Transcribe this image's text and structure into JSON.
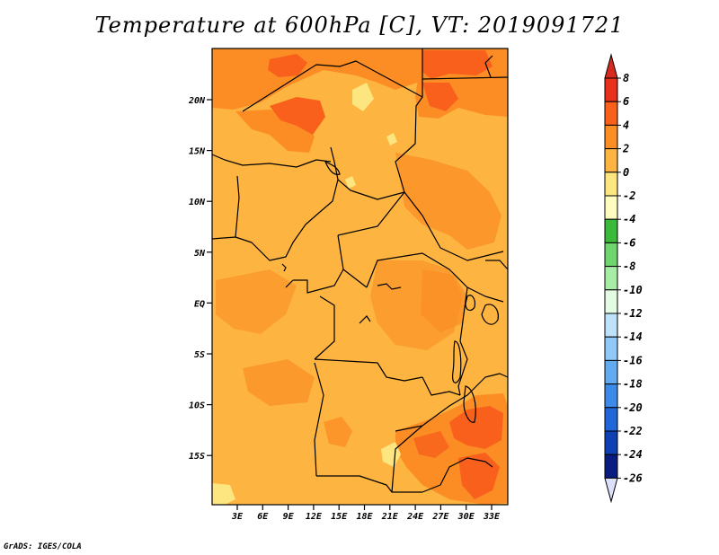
{
  "title": "Temperature at 600hPa [C], VT: 2019091721",
  "credit": "GrADS: IGES/COLA",
  "map": {
    "lat_labels": [
      "20N",
      "15N",
      "10N",
      "5N",
      "EQ",
      "5S",
      "10S",
      "15S"
    ],
    "lon_labels": [
      "3E",
      "6E",
      "9E",
      "12E",
      "15E",
      "18E",
      "21E",
      "24E",
      "27E",
      "30E",
      "33E"
    ],
    "base_color": "#fdb441"
  },
  "colorbar": {
    "labels": [
      "8",
      "6",
      "4",
      "2",
      "0",
      "-2",
      "-4",
      "-6",
      "-8",
      "-10",
      "-12",
      "-14",
      "-16",
      "-18",
      "-20",
      "-22",
      "-24",
      "-26"
    ],
    "colors": [
      "#e8311a",
      "#f9601c",
      "#fb8d24",
      "#fdb441",
      "#fde580",
      "#fffcc0",
      "#3ab93a",
      "#6fd66f",
      "#a6eda6",
      "#e3fbe3",
      "#bfe2fb",
      "#90c8f7",
      "#62abf1",
      "#3c8be9",
      "#2167da",
      "#1041b4",
      "#0a1c80"
    ],
    "top_arrow_color": "#d52a1d",
    "bottom_arrow_color": "#dde0fb"
  }
}
